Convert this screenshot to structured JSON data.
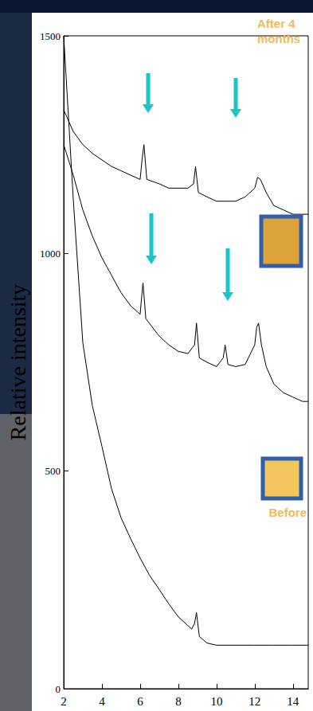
{
  "chart_data": {
    "type": "line",
    "ylabel": "Relative intensity",
    "xlim": [
      2,
      14.8
    ],
    "xticks": [
      2,
      4,
      6,
      8,
      10,
      12,
      14
    ],
    "ylim": [
      0,
      1500
    ],
    "yticks": [
      0,
      500,
      1000,
      1500
    ],
    "grid": false,
    "annotations": [
      "After 4 months",
      "Before"
    ],
    "series": [
      {
        "color": "#000000",
        "x": [
          2,
          2.5,
          3,
          3.5,
          4,
          4.5,
          5,
          5.5,
          6,
          6.1,
          6.2,
          6.35,
          7,
          7.5,
          8,
          8.5,
          8.8,
          8.9,
          9.05,
          9.5,
          10,
          10.5,
          11,
          11.5,
          12,
          12.15,
          12.3,
          12.6,
          13,
          13.5,
          14,
          14.8
        ],
        "values": [
          1330,
          1280,
          1250,
          1230,
          1215,
          1200,
          1190,
          1180,
          1170,
          1215,
          1250,
          1170,
          1160,
          1150,
          1150,
          1150,
          1160,
          1200,
          1140,
          1130,
          1120,
          1120,
          1120,
          1130,
          1150,
          1175,
          1170,
          1140,
          1110,
          1100,
          1090,
          1090
        ]
      },
      {
        "color": "#000000",
        "x": [
          2,
          2.5,
          3,
          3.5,
          4,
          4.5,
          5,
          5.5,
          6,
          6.08,
          6.15,
          6.3,
          7,
          7.5,
          8,
          8.5,
          8.85,
          8.95,
          9.1,
          9.5,
          10,
          10.35,
          10.45,
          10.6,
          11,
          11.5,
          12,
          12.1,
          12.2,
          12.35,
          12.6,
          13,
          13.5,
          14,
          14.5,
          14.8
        ],
        "values": [
          1250,
          1180,
          1100,
          1040,
          990,
          950,
          910,
          880,
          860,
          900,
          932,
          850,
          810,
          790,
          775,
          770,
          790,
          840,
          760,
          750,
          740,
          760,
          790,
          745,
          740,
          745,
          790,
          830,
          840,
          790,
          740,
          700,
          680,
          670,
          660,
          660
        ]
      },
      {
        "color": "#000000",
        "x": [
          2,
          2.5,
          3,
          3.5,
          4,
          4.5,
          5,
          5.5,
          6,
          6.5,
          7,
          7.5,
          8,
          8.5,
          8.7,
          8.85,
          8.95,
          9.1,
          9.5,
          10,
          11,
          12,
          13,
          14,
          14.8
        ],
        "values": [
          1500,
          1125,
          795,
          650,
          557,
          460,
          393,
          345,
          300,
          260,
          228,
          195,
          165,
          145,
          137,
          150,
          175,
          120,
          105,
          100,
          100,
          100,
          100,
          100,
          100
        ]
      }
    ]
  }
}
